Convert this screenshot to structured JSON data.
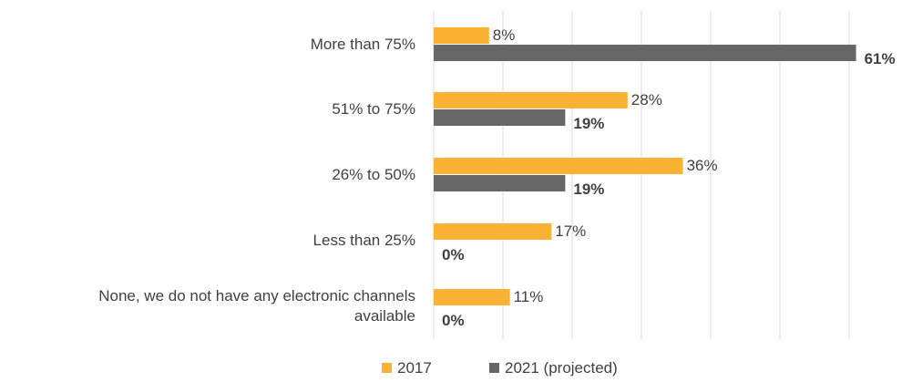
{
  "chart_data": {
    "type": "bar",
    "orientation": "horizontal",
    "categories": [
      [
        "More than 75%"
      ],
      [
        "51% to 75%"
      ],
      [
        "26% to 50%"
      ],
      [
        "Less than 25%"
      ],
      [
        "None, we do not have any electronic channels",
        "available"
      ]
    ],
    "series": [
      {
        "name": "2017",
        "values": [
          8,
          28,
          36,
          17,
          11
        ],
        "labels": [
          "8%",
          "28%",
          "36%",
          "17%",
          "11%"
        ],
        "color": "#f9b233",
        "label_bold": false
      },
      {
        "name": "2021 (projected)",
        "values": [
          61,
          19,
          19,
          0,
          0
        ],
        "labels": [
          "61%",
          "19%",
          "19%",
          "0%",
          "0%"
        ],
        "color": "#666666",
        "label_bold": true
      }
    ],
    "xlim": [
      0,
      60
    ],
    "grid": true,
    "legend_position": "bottom",
    "text_color": "#404040",
    "grid_color": "#d9d9d9"
  }
}
